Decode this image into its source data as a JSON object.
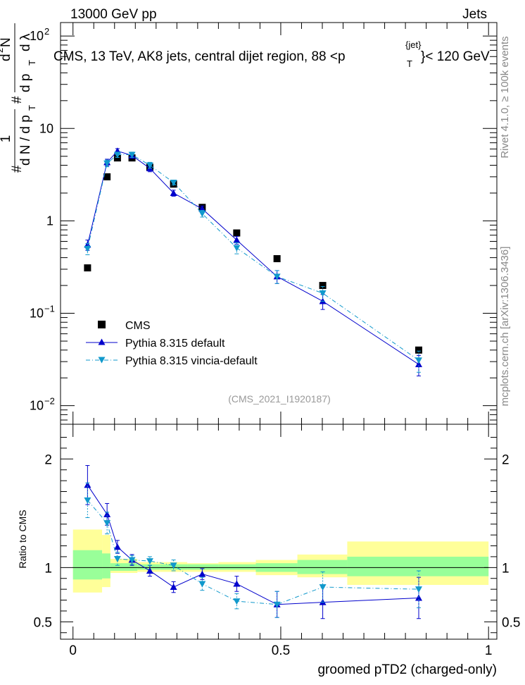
{
  "header": {
    "left": "13000 GeV pp",
    "right": "Jets"
  },
  "side_labels": {
    "rivet": "Rivet 4.1.0, ≥ 100k events",
    "mcplots": "mcplots.cern.ch [arXiv:1306.3436]"
  },
  "colors": {
    "cms": "#000000",
    "pythia_default": "#0000cc",
    "pythia_vincia": "#1199cc",
    "band_inner": "#99ff99",
    "band_outer": "#ffff99"
  },
  "chart_data": [
    {
      "type": "scatter",
      "name": "main",
      "title": "CMS, 13 TeV, AK8 jets, central dijet region, 88 <p_T^{jet} < 120 GeV",
      "title_parts": {
        "main": "CMS, 13 TeV, AK8 jets, central dijet region, 88 <p",
        "sup": "{jet}",
        "sub": "T",
        "tail": "}< 120 GeV"
      },
      "ylabel": "1/(dN/dp_T) d^2N/(dp_T dλ)",
      "ylabel_parts": {
        "num": "1",
        "num_hash": "#",
        "den": "d N / d p",
        "den_sub": "T",
        "num2": "d",
        "num2_sup": "2",
        "num2_tail": "N",
        "den2": "d p",
        "den2_sub": "T",
        "den2_tail": "d λ"
      },
      "yscale": "log",
      "xlim": [
        -0.03,
        1.02
      ],
      "ylim": [
        0.0063,
        140
      ],
      "y_ticks": [
        {
          "value": 0.01,
          "base": "10",
          "exp": "−2"
        },
        {
          "value": 0.1,
          "base": "10",
          "exp": "−1"
        },
        {
          "value": 1,
          "base": "1",
          "exp": ""
        },
        {
          "value": 10,
          "base": "10",
          "exp": ""
        },
        {
          "value": 100,
          "base": "10",
          "exp": "2"
        }
      ],
      "watermark": "(CMS_2021_I1920187)",
      "legend_position": "bottom-left",
      "legend": [
        "CMS",
        "Pythia 8.315 default",
        "Pythia 8.315 vincia-default"
      ],
      "series": [
        {
          "name": "CMS",
          "marker": "square",
          "x": [
            0.035,
            0.082,
            0.107,
            0.142,
            0.185,
            0.242,
            0.311,
            0.394,
            0.491,
            0.601,
            0.832
          ],
          "y": [
            0.31,
            3.0,
            4.8,
            4.8,
            3.8,
            2.5,
            1.4,
            0.74,
            0.39,
            0.2,
            0.04
          ]
        },
        {
          "name": "Pythia 8.315 default",
          "marker": "triangle-up",
          "line": "solid",
          "x": [
            0.035,
            0.082,
            0.107,
            0.142,
            0.185,
            0.242,
            0.311,
            0.394,
            0.491,
            0.601,
            0.832
          ],
          "y": [
            0.55,
            4.3,
            5.7,
            5.1,
            3.7,
            2.0,
            1.35,
            0.62,
            0.25,
            0.135,
            0.028
          ],
          "yerr": [
            0.07,
            0.35,
            0.35,
            0.35,
            0.3,
            0.15,
            0.1,
            0.06,
            0.04,
            0.025,
            0.007
          ]
        },
        {
          "name": "Pythia 8.315 vincia-default",
          "marker": "triangle-down",
          "line": "dashdot",
          "x": [
            0.035,
            0.082,
            0.107,
            0.142,
            0.185,
            0.242,
            0.311,
            0.394,
            0.491,
            0.601,
            0.832
          ],
          "y": [
            0.5,
            4.2,
            5.2,
            5.2,
            4.0,
            2.6,
            1.2,
            0.51,
            0.25,
            0.165,
            0.031
          ],
          "yerr": [
            0.07,
            0.35,
            0.35,
            0.35,
            0.3,
            0.15,
            0.1,
            0.07,
            0.04,
            0.03,
            0.008
          ]
        }
      ]
    },
    {
      "type": "scatter",
      "name": "ratio",
      "ylabel": "Ratio to CMS",
      "xlabel": "groomed pTD2 (charged-only)",
      "xlim": [
        -0.03,
        1.02
      ],
      "ylim": [
        0.34,
        2.32
      ],
      "y_ticks": [
        0.5,
        1,
        2
      ],
      "x_ticks": [
        0,
        0.5,
        1
      ],
      "y_tick_labels": [
        "0.5",
        "1",
        "2"
      ],
      "x_tick_labels": [
        "0",
        "0.5",
        "1"
      ],
      "reference_line": 1,
      "bands": [
        {
          "x0": 0.0,
          "x1": 0.07,
          "inner": [
            0.89,
            1.16
          ],
          "outer": [
            0.77,
            1.35
          ]
        },
        {
          "x0": 0.07,
          "x1": 0.09,
          "inner": [
            0.9,
            1.13
          ],
          "outer": [
            0.82,
            1.3
          ]
        },
        {
          "x0": 0.09,
          "x1": 0.155,
          "inner": [
            0.97,
            1.04
          ],
          "outer": [
            0.95,
            1.08
          ]
        },
        {
          "x0": 0.155,
          "x1": 0.21,
          "inner": [
            0.98,
            1.03
          ],
          "outer": [
            0.96,
            1.05
          ]
        },
        {
          "x0": 0.21,
          "x1": 0.275,
          "inner": [
            0.98,
            1.03
          ],
          "outer": [
            0.96,
            1.05
          ]
        },
        {
          "x0": 0.275,
          "x1": 0.35,
          "inner": [
            0.98,
            1.03
          ],
          "outer": [
            0.96,
            1.04
          ]
        },
        {
          "x0": 0.35,
          "x1": 0.44,
          "inner": [
            0.98,
            1.03
          ],
          "outer": [
            0.96,
            1.05
          ]
        },
        {
          "x0": 0.44,
          "x1": 0.54,
          "inner": [
            0.96,
            1.04
          ],
          "outer": [
            0.93,
            1.07
          ]
        },
        {
          "x0": 0.54,
          "x1": 0.66,
          "inner": [
            0.94,
            1.07
          ],
          "outer": [
            0.91,
            1.12
          ]
        },
        {
          "x0": 0.66,
          "x1": 1.0,
          "inner": [
            0.92,
            1.1
          ],
          "outer": [
            0.84,
            1.24
          ]
        }
      ],
      "series": [
        {
          "name": "Pythia 8.315 default",
          "marker": "triangle-up",
          "line": "solid",
          "x": [
            0.035,
            0.082,
            0.107,
            0.142,
            0.185,
            0.242,
            0.311,
            0.394,
            0.491,
            0.601,
            0.832
          ],
          "y": [
            1.76,
            1.49,
            1.19,
            1.07,
            0.97,
            0.82,
            0.94,
            0.85,
            0.66,
            0.68,
            0.72
          ],
          "yerr": [
            0.18,
            0.1,
            0.06,
            0.05,
            0.05,
            0.05,
            0.05,
            0.07,
            0.12,
            0.15,
            0.19
          ]
        },
        {
          "name": "Pythia 8.315 vincia-default",
          "marker": "triangle-down",
          "line": "dashdot",
          "x": [
            0.035,
            0.082,
            0.107,
            0.142,
            0.185,
            0.242,
            0.311,
            0.394,
            0.491,
            0.601,
            0.832
          ],
          "y": [
            1.62,
            1.41,
            1.08,
            1.07,
            1.06,
            1.02,
            0.85,
            0.69,
            0.66,
            0.82,
            0.8
          ],
          "yerr": [
            0.16,
            0.1,
            0.06,
            0.04,
            0.04,
            0.05,
            0.06,
            0.07,
            0.12,
            0.14,
            0.17
          ]
        }
      ]
    }
  ]
}
